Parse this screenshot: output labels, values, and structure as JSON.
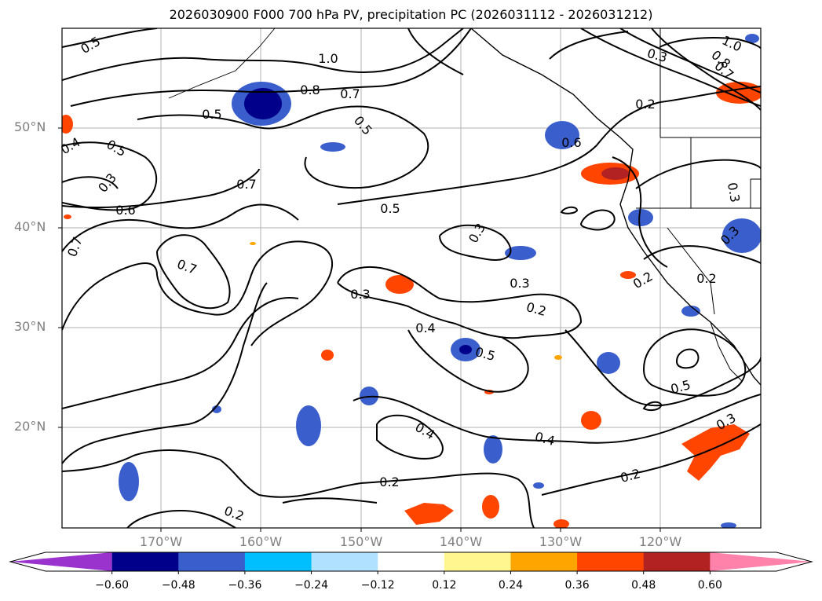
{
  "title": "2026030900 F000 700 hPa PV, precipitation PC (2026031112 - 2026031212)",
  "lat_labels": [
    "50°N",
    "40°N",
    "30°N",
    "20°N"
  ],
  "lon_labels": [
    "170°W",
    "160°W",
    "150°W",
    "140°W",
    "130°W",
    "120°W"
  ],
  "contour_labels": [
    "0.5",
    "1.0",
    "0.8",
    "0.7",
    "0.5",
    "0.5",
    "0.4",
    "0.5",
    "0.3",
    "0.6",
    "0.7",
    "0.7",
    "0.5",
    "0.3",
    "0.7",
    "0.3",
    "0.3",
    "0.2",
    "0.4",
    "0.5",
    "0.4",
    "0.4",
    "0.2",
    "0.2",
    "0.2",
    "0.6",
    "0.3",
    "0.8",
    "0.7",
    "1.0",
    "0.2",
    "0.3",
    "0.3",
    "0.2",
    "0.5",
    "0.3",
    "0.2"
  ],
  "colorbar": {
    "ticks": [
      "−0.60",
      "−0.48",
      "−0.36",
      "−0.24",
      "−0.12",
      "0.12",
      "0.24",
      "0.36",
      "0.48",
      "0.60"
    ],
    "colors": [
      "#9a32cd",
      "#00008b",
      "#3a5fcd",
      "#00bfff",
      "#b0e2ff",
      "#ffffff",
      "#fff68f",
      "#ffa500",
      "#ff4500",
      "#b22222",
      "#ff82ab"
    ]
  }
}
